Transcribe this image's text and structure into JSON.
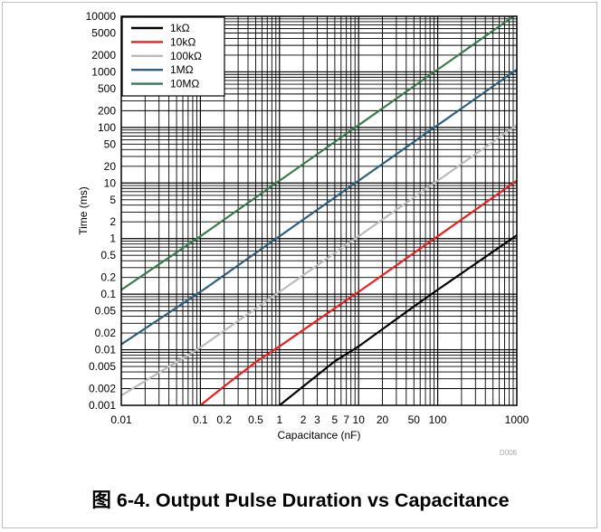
{
  "chart_data": {
    "type": "line",
    "title": "",
    "xlabel": "Capacitance (nF)",
    "ylabel": "Time (ms)",
    "xscale": "log",
    "yscale": "log",
    "xlim": [
      0.01,
      1000
    ],
    "ylim": [
      0.001,
      10000
    ],
    "grid": true,
    "legend_position": "top-left",
    "x_tick_labels": [
      {
        "value": 0.01,
        "label": "0.01"
      },
      {
        "value": 0.1,
        "label": "0.1"
      },
      {
        "value": 0.2,
        "label": "0.2"
      },
      {
        "value": 0.5,
        "label": "0.5"
      },
      {
        "value": 1,
        "label": "1"
      },
      {
        "value": 2,
        "label": "2"
      },
      {
        "value": 3,
        "label": "3"
      },
      {
        "value": 5,
        "label": "5"
      },
      {
        "value": 7,
        "label": "7"
      },
      {
        "value": 10,
        "label": "10"
      },
      {
        "value": 20,
        "label": "20"
      },
      {
        "value": 50,
        "label": "50"
      },
      {
        "value": 100,
        "label": "100"
      },
      {
        "value": 1000,
        "label": "1000"
      }
    ],
    "y_tick_labels": [
      {
        "value": 10000,
        "label": "10000"
      },
      {
        "value": 5000,
        "label": "5000"
      },
      {
        "value": 2000,
        "label": "2000"
      },
      {
        "value": 1000,
        "label": "1000"
      },
      {
        "value": 500,
        "label": "500"
      },
      {
        "value": 200,
        "label": "200"
      },
      {
        "value": 100,
        "label": "100"
      },
      {
        "value": 50,
        "label": "50"
      },
      {
        "value": 20,
        "label": "20"
      },
      {
        "value": 10,
        "label": "10"
      },
      {
        "value": 5,
        "label": "5"
      },
      {
        "value": 2,
        "label": "2"
      },
      {
        "value": 1,
        "label": "1"
      },
      {
        "value": 0.5,
        "label": "0.5"
      },
      {
        "value": 0.2,
        "label": "0.2"
      },
      {
        "value": 0.1,
        "label": "0.1"
      },
      {
        "value": 0.05,
        "label": "0.05"
      },
      {
        "value": 0.02,
        "label": "0.02"
      },
      {
        "value": 0.01,
        "label": "0.01"
      },
      {
        "value": 0.005,
        "label": "0.005"
      },
      {
        "value": 0.002,
        "label": "0.002"
      },
      {
        "value": 0.001,
        "label": "0.001"
      }
    ],
    "series": [
      {
        "name": "1kΩ",
        "color": "#000000",
        "points": [
          [
            1,
            0.001
          ],
          [
            2,
            0.0022
          ],
          [
            5,
            0.0062
          ],
          [
            10,
            0.0115
          ],
          [
            50,
            0.06
          ],
          [
            100,
            0.12
          ],
          [
            1000,
            1.15
          ]
        ]
      },
      {
        "name": "10kΩ",
        "color": "#e8211d",
        "points": [
          [
            0.1,
            0.001
          ],
          [
            0.2,
            0.0022
          ],
          [
            0.5,
            0.006
          ],
          [
            1,
            0.0115
          ],
          [
            10,
            0.11
          ],
          [
            100,
            1.1
          ],
          [
            1000,
            11
          ]
        ]
      },
      {
        "name": "100kΩ",
        "color": "#bbbbbb",
        "points": [
          [
            0.01,
            0.0015
          ],
          [
            0.1,
            0.011
          ],
          [
            1,
            0.11
          ],
          [
            10,
            1.1
          ],
          [
            100,
            11
          ],
          [
            1000,
            110
          ]
        ]
      },
      {
        "name": "1MΩ",
        "color": "#2f5f7f",
        "points": [
          [
            0.01,
            0.0125
          ],
          [
            0.1,
            0.11
          ],
          [
            1,
            1.1
          ],
          [
            10,
            11
          ],
          [
            100,
            110
          ],
          [
            1000,
            1100
          ]
        ]
      },
      {
        "name": "10MΩ",
        "color": "#3a7a4e",
        "points": [
          [
            0.01,
            0.12
          ],
          [
            0.1,
            1.1
          ],
          [
            1,
            11
          ],
          [
            10,
            110
          ],
          [
            100,
            1100
          ],
          [
            1000,
            11000
          ]
        ]
      }
    ],
    "watermark": "D006"
  },
  "caption": {
    "prefix": "图",
    "text": "6-4. Output Pulse Duration vs Capacitance"
  }
}
